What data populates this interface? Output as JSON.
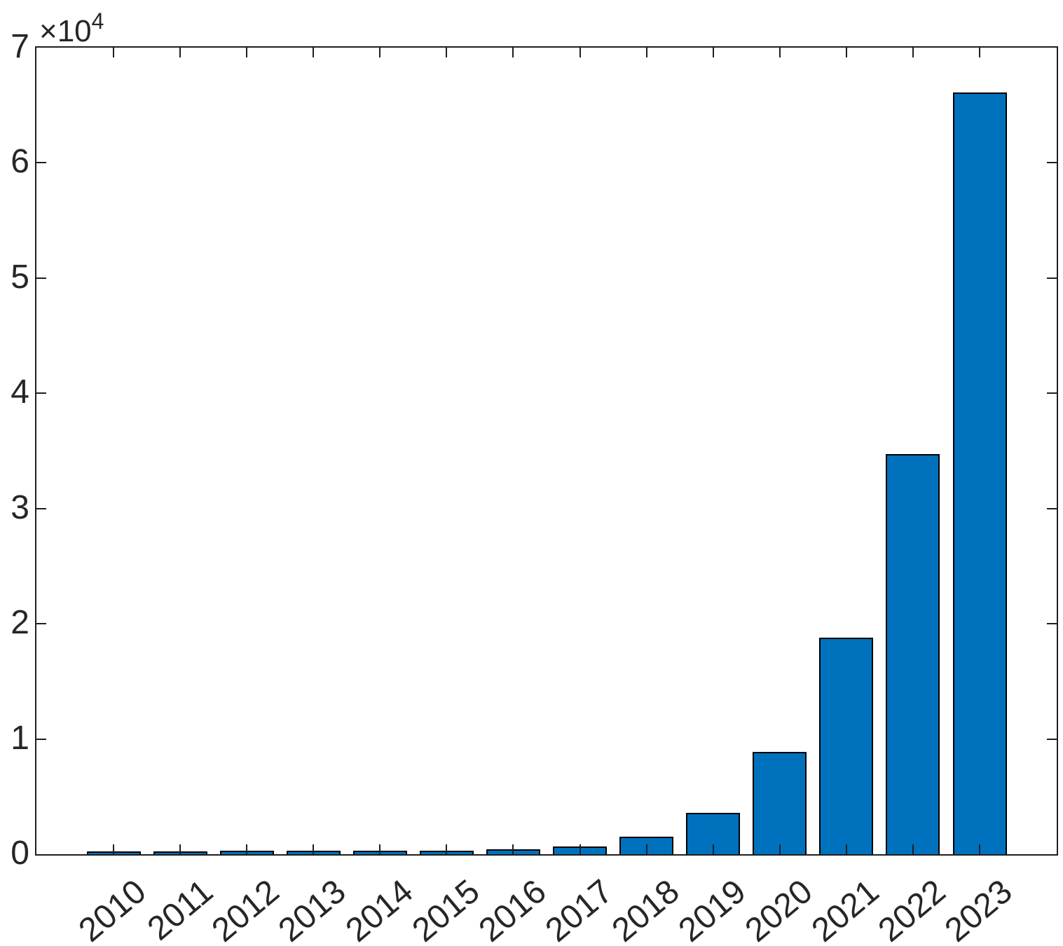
{
  "figure": {
    "background": "#ffffff",
    "y_multiplier": {
      "prefix": "×10",
      "exponent": "4"
    }
  },
  "chart_data": {
    "type": "bar",
    "title": "",
    "xlabel": "",
    "ylabel": "",
    "categories": [
      "2010",
      "2011",
      "2012",
      "2013",
      "2014",
      "2015",
      "2016",
      "2017",
      "2018",
      "2019",
      "2020",
      "2021",
      "2022",
      "2023"
    ],
    "values": [
      250,
      270,
      290,
      290,
      300,
      330,
      450,
      650,
      1550,
      3600,
      8900,
      18800,
      34700,
      66100
    ],
    "ylim": [
      0,
      70000
    ],
    "ytick_step": 10000,
    "ytick_labels": [
      "0",
      "1",
      "2",
      "3",
      "4",
      "5",
      "6",
      "7"
    ],
    "y_multiplier_text": "×10^4",
    "xtick_angle_deg": 40,
    "grid": false,
    "box": true,
    "tick_direction": "in",
    "legend_position": "none",
    "bar_color": "#0072BD",
    "bar_edge_color": "#000000",
    "axis_color": "#1f1f1f",
    "tick_label_color": "#262626"
  }
}
